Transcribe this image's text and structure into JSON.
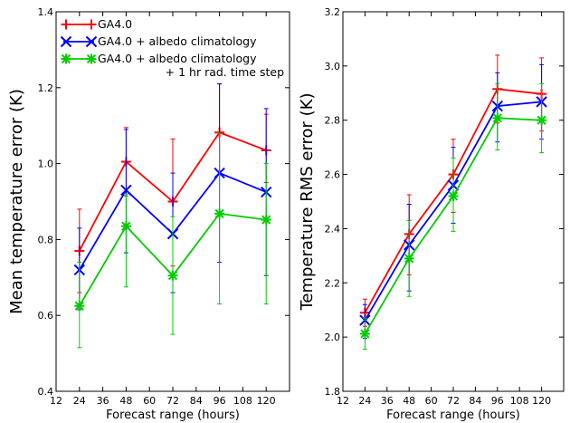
{
  "chart_data": [
    {
      "type": "line",
      "xlabel": "Forecast range (hours)",
      "ylabel": "Mean temperature error (K)",
      "xlim": [
        12,
        132
      ],
      "ylim": [
        0.4,
        1.4
      ],
      "xticks": [
        12,
        24,
        36,
        48,
        60,
        72,
        84,
        96,
        108,
        120
      ],
      "xtick_labels": [
        "12",
        "24",
        "36",
        "48",
        "60",
        "72",
        "84",
        "96",
        "108",
        "120"
      ],
      "yticks": [
        0.4,
        0.6,
        0.8,
        1.0,
        1.2,
        1.4
      ],
      "ytick_labels": [
        "0.4",
        "0.6",
        "0.8",
        "1.0",
        "1.2",
        "1.4"
      ],
      "grid": false,
      "legend": "top-left",
      "x": [
        24,
        48,
        72,
        96,
        120
      ],
      "series": [
        {
          "name_lines": [
            "GA4.0"
          ],
          "color": "#ff0000",
          "marker": "plus",
          "values": [
            0.77,
            1.005,
            0.9,
            1.082,
            1.035
          ],
          "err_low": [
            0.66,
            0.915,
            0.73,
            0.98,
            0.95
          ],
          "err_high": [
            0.88,
            1.095,
            1.065,
            1.21,
            1.13
          ]
        },
        {
          "name_lines": [
            "GA4.0 + albedo climatology"
          ],
          "color": "#0000ff",
          "marker": "x",
          "values": [
            0.72,
            0.93,
            0.815,
            0.975,
            0.925
          ],
          "err_low": [
            0.615,
            0.765,
            0.66,
            0.74,
            0.705
          ],
          "err_high": [
            0.83,
            1.09,
            0.975,
            1.21,
            1.145
          ]
        },
        {
          "name_lines": [
            "GA4.0 + albedo climatology",
            "+ 1 hr rad. time step"
          ],
          "color": "#00cc00",
          "marker": "star",
          "values": [
            0.625,
            0.835,
            0.705,
            0.868,
            0.852
          ],
          "err_low": [
            0.515,
            0.675,
            0.55,
            0.63,
            0.63
          ],
          "err_high": [
            0.74,
            0.92,
            0.86,
            1.08,
            1.0
          ]
        }
      ]
    },
    {
      "type": "line",
      "xlabel": "Forecast range (hours)",
      "ylabel": "Temperature RMS error (K)",
      "xlim": [
        12,
        132
      ],
      "ylim": [
        1.8,
        3.2
      ],
      "xticks": [
        12,
        24,
        36,
        48,
        60,
        72,
        84,
        96,
        108,
        120
      ],
      "xtick_labels": [
        "12",
        "24",
        "36",
        "48",
        "60",
        "72",
        "84",
        "96",
        "108",
        "120"
      ],
      "yticks": [
        1.8,
        2.0,
        2.2,
        2.4,
        2.6,
        2.8,
        3.0,
        3.2
      ],
      "ytick_labels": [
        "1.8",
        "2.0",
        "2.2",
        "2.4",
        "2.6",
        "2.8",
        "3.0",
        "3.2"
      ],
      "grid": false,
      "x": [
        24,
        48,
        72,
        96,
        120
      ],
      "series": [
        {
          "color": "#ff0000",
          "marker": "plus",
          "values": [
            2.09,
            2.38,
            2.6,
            2.915,
            2.897
          ],
          "err_low": [
            2.04,
            2.23,
            2.46,
            2.79,
            2.76
          ],
          "err_high": [
            2.14,
            2.525,
            2.73,
            3.04,
            3.03
          ]
        },
        {
          "color": "#0000ff",
          "marker": "x",
          "values": [
            2.062,
            2.34,
            2.56,
            2.852,
            2.868
          ],
          "err_low": [
            1.995,
            2.17,
            2.42,
            2.72,
            2.73
          ],
          "err_high": [
            2.12,
            2.49,
            2.7,
            2.975,
            3.005
          ]
        },
        {
          "color": "#00cc00",
          "marker": "star",
          "values": [
            2.012,
            2.29,
            2.52,
            2.808,
            2.8
          ],
          "err_low": [
            1.955,
            2.15,
            2.39,
            2.69,
            2.68
          ],
          "err_high": [
            2.07,
            2.43,
            2.66,
            2.935,
            2.935
          ]
        }
      ]
    }
  ]
}
